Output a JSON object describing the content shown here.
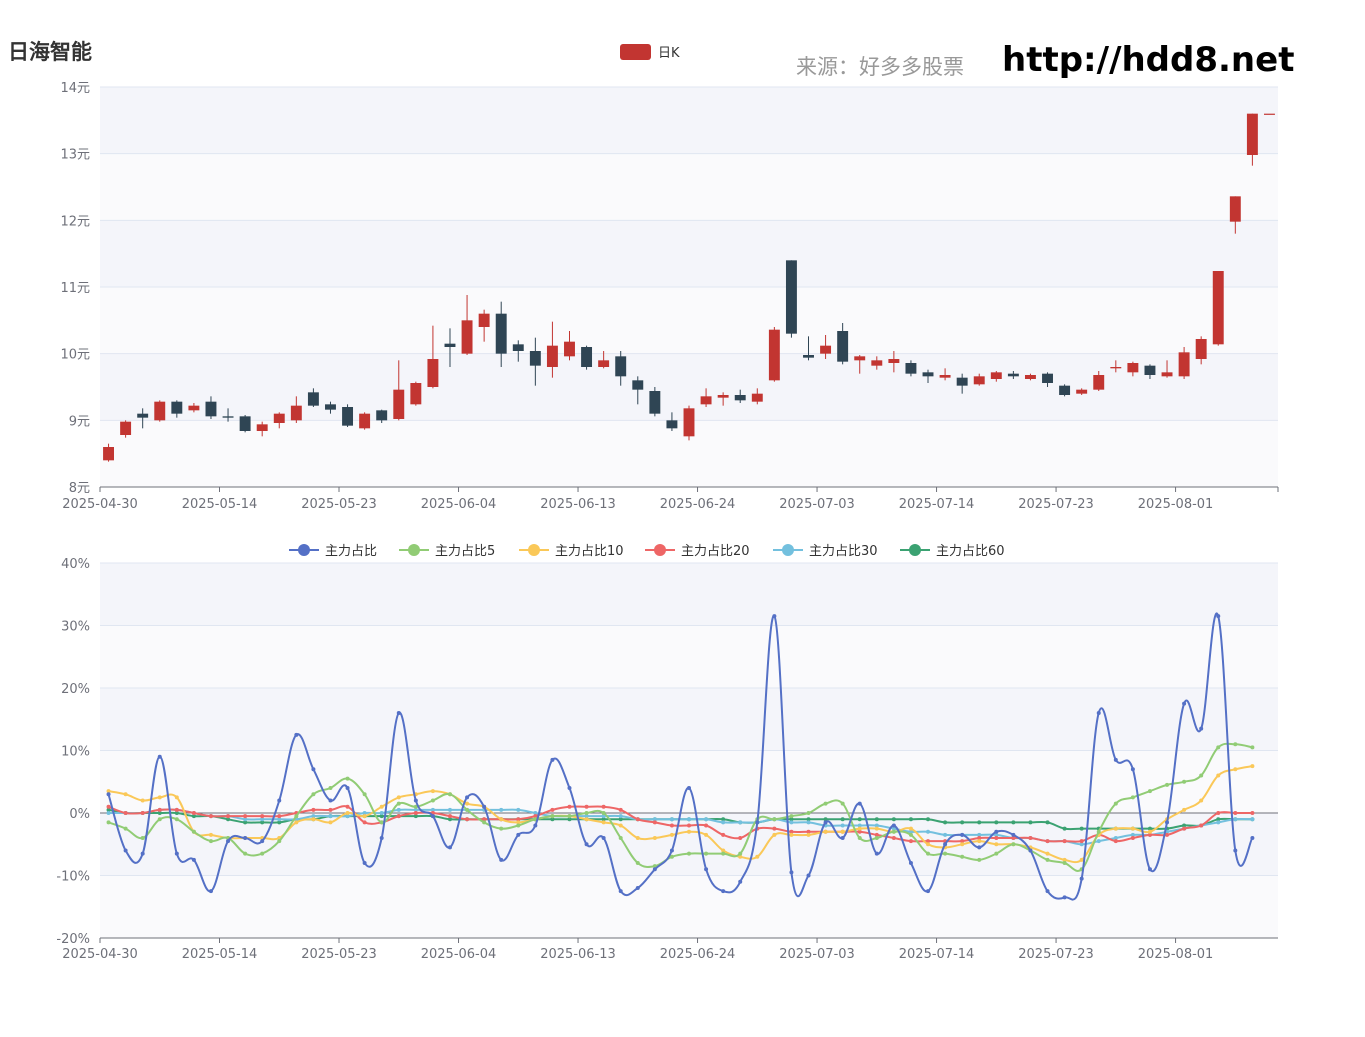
{
  "header": {
    "title": "日海智能",
    "source": "来源：好多多股票",
    "url": "http://hdd8.net"
  },
  "colors": {
    "up": "#c23531",
    "down": "#2f4554",
    "series": [
      "#5470c6",
      "#91cc75",
      "#fac858",
      "#ee6666",
      "#73c0de",
      "#3ba272"
    ]
  },
  "x_tick_labels": [
    "2025-04-30",
    "2025-05-14",
    "2025-05-23",
    "2025-06-04",
    "2025-06-13",
    "2025-06-24",
    "2025-07-03",
    "2025-07-14",
    "2025-07-23",
    "2025-08-01"
  ],
  "chart_data": [
    {
      "type": "candlestick",
      "legend": [
        "日K"
      ],
      "ylim": [
        8,
        14
      ],
      "y_ticks": [
        "8元",
        "9元",
        "10元",
        "11元",
        "12元",
        "13元",
        "14元"
      ],
      "dates": [
        "2025-04-30",
        "2025-05-06",
        "2025-05-07",
        "2025-05-08",
        "2025-05-09",
        "2025-05-12",
        "2025-05-13",
        "2025-05-14",
        "2025-05-15",
        "2025-05-16",
        "2025-05-19",
        "2025-05-20",
        "2025-05-21",
        "2025-05-22",
        "2025-05-23",
        "2025-05-26",
        "2025-05-27",
        "2025-05-28",
        "2025-05-29",
        "2025-05-30",
        "2025-06-03",
        "2025-06-04",
        "2025-06-05",
        "2025-06-06",
        "2025-06-09",
        "2025-06-10",
        "2025-06-11",
        "2025-06-12",
        "2025-06-13",
        "2025-06-16",
        "2025-06-17",
        "2025-06-18",
        "2025-06-19",
        "2025-06-20",
        "2025-06-23",
        "2025-06-24",
        "2025-06-25",
        "2025-06-26",
        "2025-06-27",
        "2025-06-30",
        "2025-07-01",
        "2025-07-02",
        "2025-07-03",
        "2025-07-04",
        "2025-07-07",
        "2025-07-08",
        "2025-07-09",
        "2025-07-10",
        "2025-07-11",
        "2025-07-14",
        "2025-07-15",
        "2025-07-16",
        "2025-07-17",
        "2025-07-18",
        "2025-07-21",
        "2025-07-22",
        "2025-07-23",
        "2025-07-24",
        "2025-07-25",
        "2025-07-28",
        "2025-07-29",
        "2025-07-30",
        "2025-07-31",
        "2025-08-01",
        "2025-08-04",
        "2025-08-05",
        "2025-08-06",
        "2025-08-07",
        "2025-08-08"
      ],
      "ohlc": [
        [
          8.4,
          8.6,
          8.38,
          8.65
        ],
        [
          8.78,
          8.98,
          8.74,
          9.0
        ],
        [
          9.1,
          9.04,
          8.88,
          9.18
        ],
        [
          9.0,
          9.28,
          8.98,
          9.3
        ],
        [
          9.28,
          9.1,
          9.04,
          9.3
        ],
        [
          9.15,
          9.22,
          9.12,
          9.26
        ],
        [
          9.28,
          9.06,
          9.02,
          9.36
        ],
        [
          9.06,
          9.04,
          8.98,
          9.18
        ],
        [
          9.06,
          8.84,
          8.82,
          9.08
        ],
        [
          8.84,
          8.94,
          8.76,
          8.98
        ],
        [
          8.96,
          9.1,
          8.88,
          9.12
        ],
        [
          9.0,
          9.22,
          8.96,
          9.36
        ],
        [
          9.42,
          9.22,
          9.2,
          9.48
        ],
        [
          9.24,
          9.16,
          9.1,
          9.28
        ],
        [
          9.2,
          8.92,
          8.9,
          9.24
        ],
        [
          8.88,
          9.1,
          8.86,
          9.12
        ],
        [
          9.15,
          9.0,
          8.96,
          9.16
        ],
        [
          9.02,
          9.46,
          9.0,
          9.9
        ],
        [
          9.24,
          9.56,
          9.22,
          9.58
        ],
        [
          9.5,
          9.92,
          9.48,
          10.42
        ],
        [
          10.15,
          10.1,
          9.8,
          10.38
        ],
        [
          10.0,
          10.5,
          9.98,
          10.88
        ],
        [
          10.4,
          10.6,
          10.18,
          10.66
        ],
        [
          10.6,
          10.0,
          9.8,
          10.78
        ],
        [
          10.14,
          10.04,
          9.88,
          10.2
        ],
        [
          10.04,
          9.82,
          9.52,
          10.24
        ],
        [
          9.8,
          10.12,
          9.64,
          10.48
        ],
        [
          9.96,
          10.18,
          9.9,
          10.34
        ],
        [
          10.1,
          9.8,
          9.76,
          10.12
        ],
        [
          9.8,
          9.9,
          9.78,
          10.04
        ],
        [
          9.96,
          9.66,
          9.52,
          10.04
        ],
        [
          9.6,
          9.46,
          9.24,
          9.66
        ],
        [
          9.44,
          9.1,
          9.06,
          9.5
        ],
        [
          9.0,
          8.88,
          8.84,
          9.12
        ],
        [
          8.76,
          9.18,
          8.7,
          9.22
        ],
        [
          9.24,
          9.36,
          9.2,
          9.48
        ],
        [
          9.34,
          9.38,
          9.22,
          9.42
        ],
        [
          9.38,
          9.3,
          9.26,
          9.46
        ],
        [
          9.28,
          9.4,
          9.24,
          9.48
        ],
        [
          9.6,
          10.36,
          9.58,
          10.4
        ],
        [
          11.4,
          10.3,
          10.24,
          11.4
        ],
        [
          9.98,
          9.94,
          9.9,
          10.26
        ],
        [
          10.0,
          10.12,
          9.92,
          10.28
        ],
        [
          10.34,
          9.88,
          9.84,
          10.46
        ],
        [
          9.9,
          9.96,
          9.7,
          9.98
        ],
        [
          9.82,
          9.9,
          9.76,
          9.96
        ],
        [
          9.86,
          9.92,
          9.72,
          10.04
        ],
        [
          9.86,
          9.7,
          9.66,
          9.9
        ],
        [
          9.72,
          9.66,
          9.56,
          9.76
        ],
        [
          9.64,
          9.68,
          9.6,
          9.78
        ],
        [
          9.64,
          9.52,
          9.4,
          9.7
        ],
        [
          9.54,
          9.66,
          9.52,
          9.7
        ],
        [
          9.62,
          9.72,
          9.58,
          9.74
        ],
        [
          9.7,
          9.66,
          9.62,
          9.74
        ],
        [
          9.62,
          9.68,
          9.6,
          9.7
        ],
        [
          9.7,
          9.56,
          9.5,
          9.72
        ],
        [
          9.52,
          9.38,
          9.36,
          9.54
        ],
        [
          9.4,
          9.46,
          9.38,
          9.48
        ],
        [
          9.46,
          9.68,
          9.44,
          9.74
        ],
        [
          9.78,
          9.8,
          9.72,
          9.9
        ],
        [
          9.72,
          9.86,
          9.66,
          9.88
        ],
        [
          9.82,
          9.68,
          9.62,
          9.84
        ],
        [
          9.66,
          9.72,
          9.64,
          9.9
        ],
        [
          9.66,
          10.02,
          9.62,
          10.1
        ],
        [
          9.92,
          10.22,
          9.84,
          10.26
        ],
        [
          10.14,
          11.24,
          10.12,
          11.24
        ],
        [
          11.98,
          12.36,
          11.8,
          12.36
        ],
        [
          12.98,
          13.6,
          12.82,
          13.6
        ],
        [
          13.6,
          13.6,
          13.6,
          13.6
        ]
      ]
    },
    {
      "type": "line",
      "ylim": [
        -20,
        40
      ],
      "y_ticks": [
        "-20%",
        "-10%",
        "0%",
        "10%",
        "20%",
        "30%",
        "40%"
      ],
      "series": [
        {
          "name": "主力占比",
          "values": [
            3.0,
            -6.0,
            -6.5,
            9.0,
            -6.5,
            -7.5,
            -12.5,
            -4.5,
            -4.0,
            -4.5,
            2.0,
            12.5,
            7.0,
            2.0,
            4.0,
            -8.0,
            -4.0,
            16.0,
            2.0,
            -0.5,
            -5.5,
            2.5,
            1.0,
            -7.5,
            -3.5,
            -2.0,
            8.5,
            4.0,
            -5.0,
            -4.0,
            -12.5,
            -12.0,
            -9.0,
            -6.0,
            4.0,
            -9.0,
            -12.5,
            -11.0,
            -1.5,
            31.5,
            -9.5,
            -10.0,
            -1.5,
            -4.0,
            1.5,
            -6.5,
            -2.0,
            -8.0,
            -12.5,
            -5.0,
            -3.5,
            -5.5,
            -3.0,
            -3.5,
            -6.0,
            -12.5,
            -13.5,
            -10.5,
            16.0,
            8.5,
            7.0,
            -9.0,
            -1.5,
            17.5,
            13.5,
            31.5,
            -6.0,
            -4.0
          ]
        },
        {
          "name": "主力占比5",
          "values": [
            -1.5,
            -2.5,
            -4.0,
            -1.0,
            -1.0,
            -3.0,
            -4.5,
            -4.0,
            -6.5,
            -6.5,
            -4.5,
            -0.5,
            3.0,
            4.0,
            5.5,
            3.0,
            -1.5,
            1.5,
            1.0,
            2.0,
            3.0,
            0.5,
            -1.5,
            -2.5,
            -2.0,
            -1.0,
            -0.5,
            -0.5,
            0.0,
            0.0,
            -4.0,
            -8.0,
            -8.5,
            -7.0,
            -6.5,
            -6.5,
            -6.5,
            -6.5,
            -1.0,
            -1.0,
            -0.5,
            0.0,
            1.5,
            1.5,
            -4.0,
            -4.0,
            -3.0,
            -3.5,
            -6.5,
            -6.5,
            -7.0,
            -7.5,
            -6.5,
            -5.0,
            -6.0,
            -7.5,
            -8.0,
            -9.0,
            -3.0,
            1.5,
            2.5,
            3.5,
            4.5,
            5.0,
            6.0,
            10.5,
            11.0,
            10.5
          ]
        },
        {
          "name": "主力占比10",
          "values": [
            3.5,
            3.0,
            2.0,
            2.5,
            2.5,
            -3.0,
            -3.5,
            -4.0,
            -4.0,
            -4.0,
            -4.0,
            -1.5,
            -1.0,
            -1.5,
            0.0,
            -0.5,
            1.0,
            2.5,
            3.0,
            3.5,
            3.0,
            1.5,
            1.0,
            -1.0,
            -1.5,
            -1.0,
            -0.5,
            -0.5,
            -1.0,
            -1.5,
            -2.0,
            -4.0,
            -4.0,
            -3.5,
            -3.0,
            -3.5,
            -6.0,
            -7.0,
            -7.0,
            -3.5,
            -3.5,
            -3.5,
            -3.0,
            -3.0,
            -2.5,
            -2.5,
            -3.0,
            -2.5,
            -5.0,
            -5.5,
            -5.0,
            -4.5,
            -5.0,
            -5.0,
            -5.5,
            -6.5,
            -7.5,
            -7.5,
            -3.5,
            -2.5,
            -2.5,
            -3.0,
            -1.0,
            0.5,
            2.0,
            6.0,
            7.0,
            7.5
          ]
        },
        {
          "name": "主力占比20",
          "values": [
            1.0,
            0.0,
            0.0,
            0.5,
            0.5,
            0.0,
            -0.5,
            -0.5,
            -0.5,
            -0.5,
            -0.5,
            0.0,
            0.5,
            0.5,
            1.0,
            -1.5,
            -1.5,
            -0.5,
            0.0,
            0.0,
            -0.5,
            -1.0,
            -1.0,
            -1.0,
            -1.0,
            -0.5,
            0.5,
            1.0,
            1.0,
            1.0,
            0.5,
            -1.0,
            -1.5,
            -2.0,
            -2.0,
            -2.0,
            -3.5,
            -4.0,
            -2.5,
            -2.5,
            -3.0,
            -3.0,
            -3.0,
            -3.0,
            -3.0,
            -3.5,
            -4.0,
            -4.5,
            -4.5,
            -4.5,
            -4.5,
            -4.0,
            -4.0,
            -4.0,
            -4.0,
            -4.5,
            -4.5,
            -4.5,
            -3.5,
            -4.5,
            -4.0,
            -3.5,
            -3.5,
            -2.5,
            -2.0,
            0.0,
            0.0,
            0.0
          ]
        },
        {
          "name": "主力占比30",
          "values": [
            0.0,
            0.0,
            0.0,
            0.5,
            0.5,
            0.0,
            -0.5,
            -0.5,
            -1.0,
            -1.0,
            -1.0,
            -1.0,
            -0.5,
            -0.5,
            -0.5,
            0.0,
            0.0,
            0.5,
            0.5,
            0.5,
            0.5,
            0.5,
            0.5,
            0.5,
            0.5,
            0.0,
            -0.5,
            -0.5,
            -0.5,
            -0.5,
            -0.5,
            -1.0,
            -1.0,
            -1.0,
            -1.0,
            -1.0,
            -1.5,
            -1.5,
            -1.5,
            -1.0,
            -1.5,
            -1.5,
            -2.0,
            -2.0,
            -2.0,
            -2.0,
            -2.5,
            -3.0,
            -3.0,
            -3.5,
            -3.5,
            -3.5,
            -3.5,
            -4.0,
            -4.0,
            -4.5,
            -4.5,
            -5.0,
            -4.5,
            -4.0,
            -3.5,
            -3.5,
            -3.0,
            -2.5,
            -2.0,
            -1.5,
            -1.0,
            -1.0
          ]
        },
        {
          "name": "主力占比60",
          "values": [
            0.5,
            0.0,
            0.0,
            0.0,
            0.0,
            -0.5,
            -0.5,
            -1.0,
            -1.5,
            -1.5,
            -1.5,
            -1.0,
            -1.0,
            -0.5,
            -0.5,
            -0.5,
            -0.5,
            -0.5,
            -0.5,
            -0.5,
            -1.0,
            -1.0,
            -1.0,
            -1.0,
            -1.0,
            -1.0,
            -1.0,
            -1.0,
            -1.0,
            -1.0,
            -1.0,
            -1.0,
            -1.0,
            -1.0,
            -1.0,
            -1.0,
            -1.0,
            -1.5,
            -1.5,
            -1.0,
            -1.0,
            -1.0,
            -1.0,
            -1.0,
            -1.0,
            -1.0,
            -1.0,
            -1.0,
            -1.0,
            -1.5,
            -1.5,
            -1.5,
            -1.5,
            -1.5,
            -1.5,
            -1.5,
            -2.5,
            -2.5,
            -2.5,
            -2.5,
            -2.5,
            -2.5,
            -2.5,
            -2.0,
            -2.0,
            -1.0,
            -1.0,
            -1.0
          ]
        }
      ]
    }
  ]
}
